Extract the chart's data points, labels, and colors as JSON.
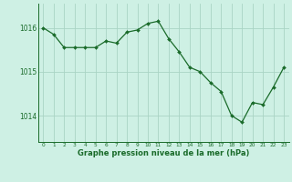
{
  "x": [
    0,
    1,
    2,
    3,
    4,
    5,
    6,
    7,
    8,
    9,
    10,
    11,
    12,
    13,
    14,
    15,
    16,
    17,
    18,
    19,
    20,
    21,
    22,
    23
  ],
  "y": [
    1016.0,
    1015.85,
    1015.55,
    1015.55,
    1015.55,
    1015.55,
    1015.7,
    1015.65,
    1015.9,
    1015.95,
    1016.1,
    1016.15,
    1015.75,
    1015.45,
    1015.1,
    1015.0,
    1014.75,
    1014.55,
    1014.0,
    1013.85,
    1014.3,
    1014.25,
    1014.65,
    1015.1
  ],
  "line_color": "#1a6b2a",
  "marker_color": "#1a6b2a",
  "bg_color": "#cef0e4",
  "grid_color": "#aad4c4",
  "title": "Graphe pression niveau de la mer (hPa)",
  "yticks": [
    1014,
    1015,
    1016
  ],
  "xtick_labels": [
    "0",
    "1",
    "2",
    "3",
    "4",
    "5",
    "6",
    "7",
    "8",
    "9",
    "10",
    "11",
    "12",
    "13",
    "14",
    "15",
    "16",
    "17",
    "18",
    "19",
    "20",
    "21",
    "22",
    "23"
  ],
  "ylim": [
    1013.4,
    1016.55
  ],
  "xlim": [
    -0.5,
    23.5
  ]
}
